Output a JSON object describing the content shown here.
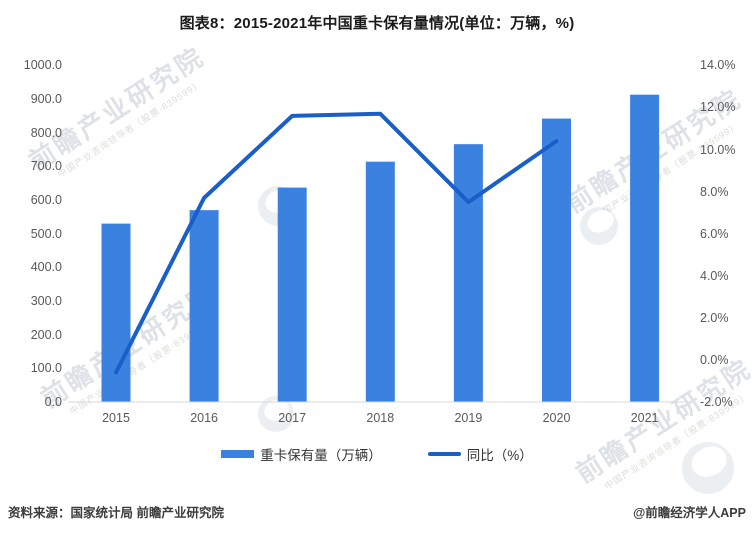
{
  "title": "图表8：2015-2021年中国重卡保有量情况(单位：万辆，%)",
  "chart_data": {
    "type": "bar+line combo",
    "title": "图表8：2015-2021年中国重卡保有量情况(单位：万辆，%)",
    "categories": [
      "2015",
      "2016",
      "2017",
      "2018",
      "2019",
      "2020",
      "2021"
    ],
    "series": [
      {
        "name": "重卡保有量（万辆）",
        "type": "bar",
        "axis": "left",
        "values": [
          530,
          570,
          637,
          714,
          766,
          842,
          913
        ]
      },
      {
        "name": "同比（%）",
        "type": "line",
        "axis": "right",
        "values": [
          -0.6,
          7.7,
          11.6,
          11.7,
          7.5,
          10.4,
          null
        ]
      }
    ],
    "left_axis": {
      "min": 0,
      "max": 1000,
      "step": 100,
      "tick_labels": [
        "0.0",
        "100.0",
        "200.0",
        "300.0",
        "400.0",
        "500.0",
        "600.0",
        "700.0",
        "800.0",
        "900.0",
        "1000.0"
      ]
    },
    "right_axis": {
      "min": -2,
      "max": 14,
      "step": 2,
      "tick_labels": [
        "-2.0%",
        "0.0%",
        "2.0%",
        "4.0%",
        "6.0%",
        "8.0%",
        "10.0%",
        "12.0%",
        "14.0%"
      ]
    },
    "grid": false,
    "legend_position": "bottom"
  },
  "footer": {
    "source": "资料来源：国家统计局 前瞻产业研究院",
    "credit": "@前瞻经济学人APP"
  },
  "watermark": {
    "text": "前瞻产业研究院",
    "subtext": "中国产业咨询领导者（股票·839599）"
  },
  "colors": {
    "bar": "#3B82E0",
    "line": "#1A5EC8",
    "axis_line": "#D9D9D9",
    "tick_text": "#595959"
  }
}
